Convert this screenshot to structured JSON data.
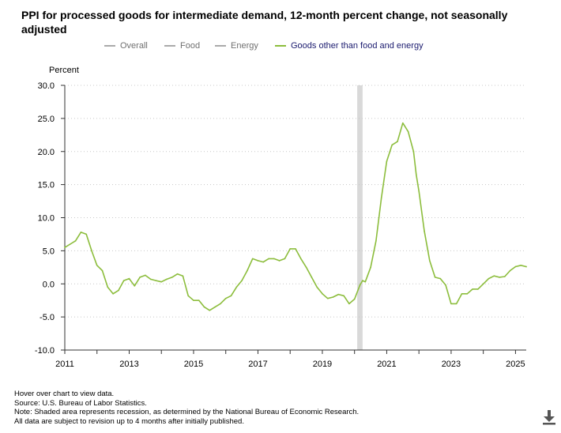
{
  "title": "PPI for processed goods for intermediate demand, 12-month percent change, not seasonally adjusted",
  "legend": [
    {
      "label": "Overall",
      "color": "#aaaaaa",
      "active": false
    },
    {
      "label": "Food",
      "color": "#aaaaaa",
      "active": false
    },
    {
      "label": "Energy",
      "color": "#aaaaaa",
      "active": false
    },
    {
      "label": "Goods other than food and energy",
      "color": "#8cbd3c",
      "active": true
    }
  ],
  "colors": {
    "series": "#8cbd3c",
    "recession": "#d9d9d9",
    "grid": "#c8c8c8",
    "axis": "#333333",
    "legend_active_text": "#1a1a6e",
    "legend_inactive_text": "#707070"
  },
  "chart_data": {
    "type": "line",
    "ylabel": "Percent",
    "xlabel": "",
    "ylim": [
      -10,
      30
    ],
    "xlim": [
      "2011-01",
      "2025-05"
    ],
    "grid": true,
    "legend_position": "top",
    "yticks": [
      "30.0",
      "25.0",
      "20.0",
      "15.0",
      "10.0",
      "5.0",
      "0.0",
      "-5.0",
      "-10.0"
    ],
    "xticks": [
      "2011",
      "2013",
      "2015",
      "2017",
      "2019",
      "2021",
      "2023",
      "2025"
    ],
    "recession": {
      "start": "2020-02",
      "end": "2020-04"
    },
    "series": [
      {
        "name": "Goods other than food and energy",
        "x": [
          "2011-01",
          "2011-03",
          "2011-05",
          "2011-07",
          "2011-09",
          "2011-11",
          "2012-01",
          "2012-03",
          "2012-05",
          "2012-07",
          "2012-09",
          "2012-11",
          "2013-01",
          "2013-03",
          "2013-05",
          "2013-07",
          "2013-09",
          "2013-11",
          "2014-01",
          "2014-03",
          "2014-05",
          "2014-07",
          "2014-09",
          "2014-11",
          "2015-01",
          "2015-03",
          "2015-05",
          "2015-07",
          "2015-09",
          "2015-11",
          "2016-01",
          "2016-03",
          "2016-05",
          "2016-07",
          "2016-09",
          "2016-11",
          "2017-01",
          "2017-03",
          "2017-05",
          "2017-07",
          "2017-09",
          "2017-11",
          "2018-01",
          "2018-03",
          "2018-05",
          "2018-07",
          "2018-09",
          "2018-11",
          "2019-01",
          "2019-03",
          "2019-05",
          "2019-07",
          "2019-09",
          "2019-11",
          "2020-01",
          "2020-03",
          "2020-04",
          "2020-05",
          "2020-07",
          "2020-09",
          "2020-11",
          "2021-01",
          "2021-03",
          "2021-05",
          "2021-07",
          "2021-09",
          "2021-11",
          "2021-12",
          "2022-01",
          "2022-03",
          "2022-05",
          "2022-07",
          "2022-09",
          "2022-11",
          "2023-01",
          "2023-03",
          "2023-05",
          "2023-07",
          "2023-09",
          "2023-11",
          "2024-01",
          "2024-03",
          "2024-05",
          "2024-07",
          "2024-09",
          "2024-11",
          "2025-01",
          "2025-03",
          "2025-05"
        ],
        "values": [
          5.5,
          6.0,
          6.5,
          7.8,
          7.5,
          5.0,
          2.8,
          2.0,
          -0.5,
          -1.5,
          -1.0,
          0.5,
          0.8,
          -0.3,
          1.0,
          1.3,
          0.7,
          0.5,
          0.3,
          0.7,
          1.0,
          1.5,
          1.2,
          -1.8,
          -2.5,
          -2.5,
          -3.5,
          -4.0,
          -3.5,
          -3.0,
          -2.2,
          -1.8,
          -0.5,
          0.5,
          2.0,
          3.8,
          3.5,
          3.3,
          3.8,
          3.8,
          3.5,
          3.8,
          5.3,
          5.3,
          3.8,
          2.5,
          1.0,
          -0.5,
          -1.5,
          -2.2,
          -2.0,
          -1.6,
          -1.8,
          -3.0,
          -2.3,
          -0.2,
          0.5,
          0.3,
          2.5,
          6.5,
          13.0,
          18.5,
          21.0,
          21.5,
          24.3,
          23.0,
          20.0,
          16.5,
          14.0,
          8.0,
          3.5,
          1.0,
          0.8,
          -0.2,
          -3.0,
          -3.0,
          -1.5,
          -1.5,
          -0.8,
          -0.8,
          0.0,
          0.8,
          1.2,
          1.0,
          1.1,
          2.0,
          2.6,
          2.8,
          2.6
        ]
      }
    ]
  },
  "footer": {
    "line1": "Hover over chart to view data.",
    "line2": "Source: U.S. Bureau of Labor Statistics.",
    "line3": "Note: Shaded area represents recession, as determined by the National Bureau of Economic Research.",
    "line4": "All data are subject to revision up to 4 months after initially published."
  },
  "download_icon": "download-icon"
}
